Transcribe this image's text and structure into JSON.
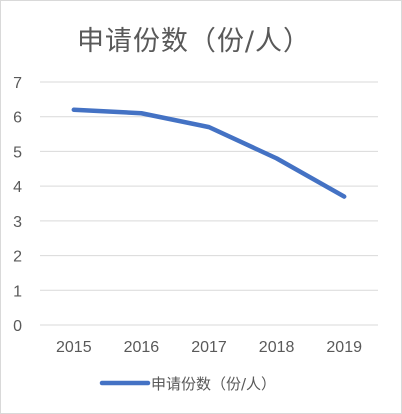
{
  "chart_data": {
    "type": "line",
    "title": "申请份数（份/人）",
    "categories": [
      "2015",
      "2016",
      "2017",
      "2018",
      "2019"
    ],
    "series": [
      {
        "name": "申请份数（份/人）",
        "values": [
          6.2,
          6.1,
          5.7,
          4.8,
          3.7
        ]
      }
    ],
    "ylim": [
      0,
      7
    ],
    "yticks": [
      "0",
      "1",
      "2",
      "3",
      "4",
      "5",
      "6",
      "7"
    ],
    "grid": true,
    "legend": "bottom",
    "colors": {
      "line": "#4472c4",
      "grid": "#d9d9d9",
      "text": "#595959"
    }
  }
}
